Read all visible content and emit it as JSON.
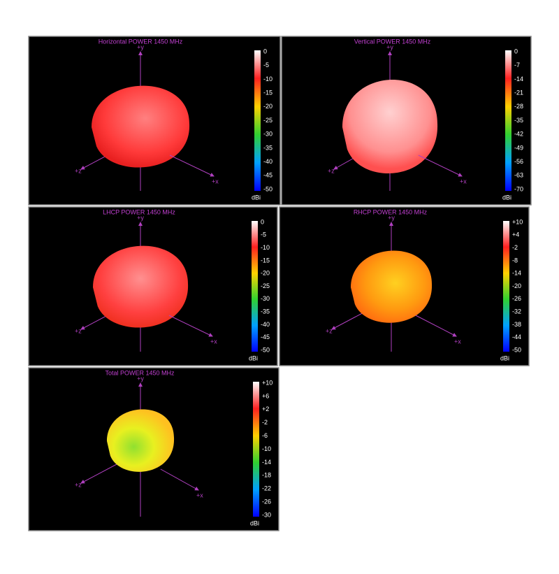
{
  "panels": [
    {
      "title": "Horizontal POWER 1450  MHz",
      "scale": [
        "0",
        "-5",
        "-10",
        "-15",
        "-20",
        "-25",
        "-30",
        "-35",
        "-40",
        "-45",
        "-50"
      ],
      "unit": "dBi",
      "axes": {
        "x": "+x",
        "y": "+y",
        "z": "+z"
      }
    },
    {
      "title": "Vertical POWER 1450  MHz",
      "scale": [
        "0",
        "-7",
        "-14",
        "-21",
        "-28",
        "-35",
        "-42",
        "-49",
        "-56",
        "-63",
        "-70"
      ],
      "unit": "dBi",
      "axes": {
        "x": "+x",
        "y": "+y",
        "z": "+z"
      }
    },
    {
      "title": "LHCP POWER 1450  MHz",
      "scale": [
        "0",
        "-5",
        "-10",
        "-15",
        "-20",
        "-25",
        "-30",
        "-35",
        "-40",
        "-45",
        "-50"
      ],
      "unit": "dBi",
      "axes": {
        "x": "+x",
        "y": "+y",
        "z": "+z"
      }
    },
    {
      "title": "RHCP POWER 1450  MHz",
      "scale": [
        "+10",
        "+4",
        "-2",
        "-8",
        "-14",
        "-20",
        "-26",
        "-32",
        "-38",
        "-44",
        "-50"
      ],
      "unit": "dBi",
      "axes": {
        "x": "+x",
        "y": "+y",
        "z": "+z"
      }
    },
    {
      "title": "Total POWER 1450  MHz",
      "scale": [
        "+10",
        "+6",
        "+2",
        "-2",
        "-6",
        "-10",
        "-14",
        "-18",
        "-22",
        "-26",
        "-30"
      ],
      "unit": "dBi",
      "axes": {
        "x": "+x",
        "y": "+y",
        "z": "+z"
      }
    }
  ]
}
